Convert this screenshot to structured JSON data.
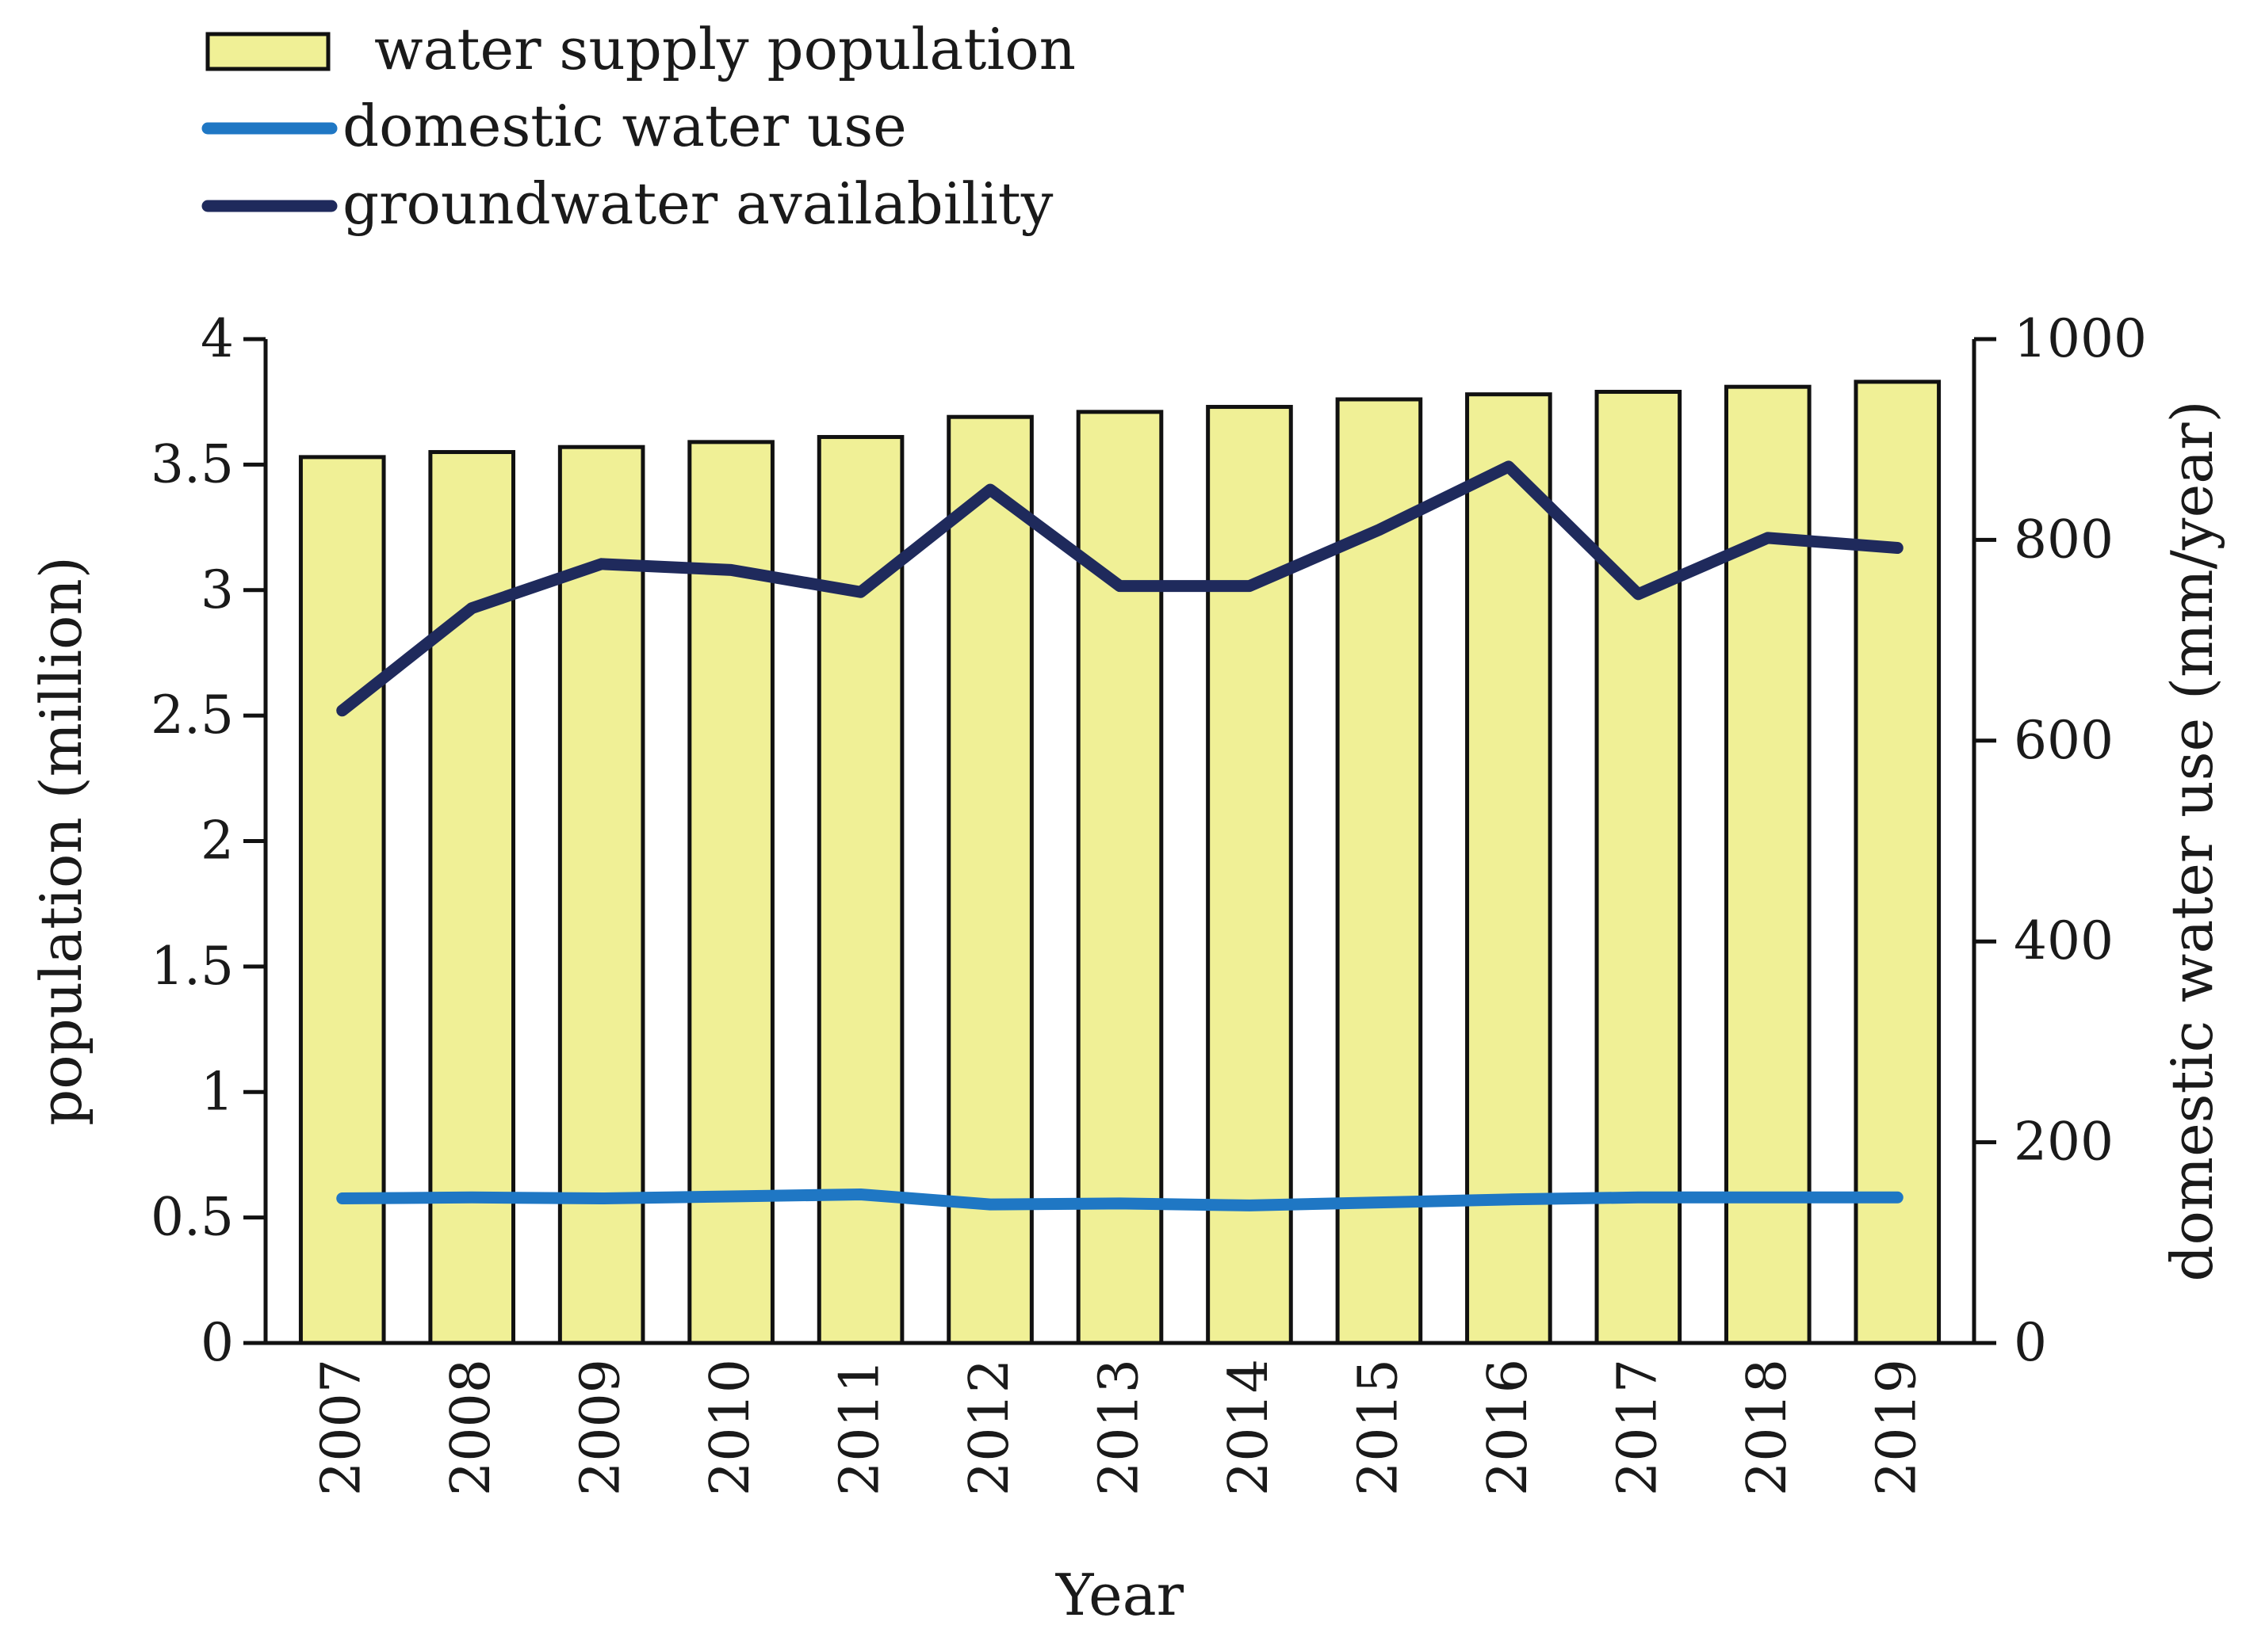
{
  "chart_data": {
    "type": "bar",
    "categories": [
      "2007",
      "2008",
      "2009",
      "2010",
      "2011",
      "2012",
      "2013",
      "2014",
      "2015",
      "2016",
      "2017",
      "2018",
      "2019"
    ],
    "xlabel": "Year",
    "ylabel": "population (million)",
    "y2label": "domestic water use (mm/year)",
    "ylim": [
      0,
      4
    ],
    "y2lim": [
      0,
      1000
    ],
    "yticks": [
      0,
      0.5,
      1,
      1.5,
      2,
      2.5,
      3,
      3.5,
      4
    ],
    "yticklabels": [
      "0",
      "0.5",
      "1",
      "1.5",
      "2",
      "2.5",
      "3",
      "3.5",
      "4"
    ],
    "y2ticks": [
      0,
      200,
      400,
      600,
      800,
      1000
    ],
    "y2ticklabels": [
      "0",
      "200",
      "400",
      "600",
      "800",
      "1000"
    ],
    "grid": false,
    "legend_position": "top-left",
    "series": [
      {
        "name": "water supply population",
        "type": "bar",
        "axis": "left",
        "color": "#f0f096",
        "values": [
          3.53,
          3.55,
          3.57,
          3.59,
          3.61,
          3.69,
          3.71,
          3.73,
          3.76,
          3.78,
          3.79,
          3.81,
          3.83
        ]
      },
      {
        "name": "domestic water use",
        "type": "line",
        "axis": "right",
        "color": "#1f77c4",
        "values": [
          144,
          145,
          144,
          146,
          148,
          138,
          139,
          137,
          140,
          143,
          145,
          145,
          145
        ]
      },
      {
        "name": "groundwater availability",
        "type": "line",
        "axis": "right",
        "color": "#1f2a5c",
        "values": [
          630,
          732,
          776,
          770,
          748,
          850,
          754,
          754,
          810,
          873,
          746,
          802,
          792
        ]
      }
    ]
  }
}
